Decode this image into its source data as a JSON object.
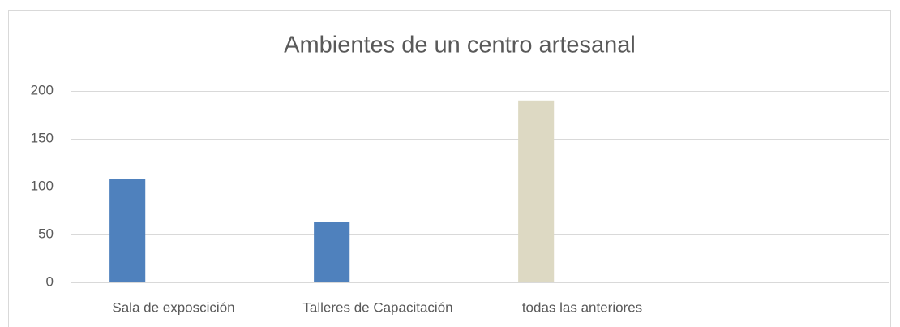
{
  "chart_data": {
    "type": "bar",
    "title": "Ambientes de un centro artesanal",
    "categories": [
      "Sala de exposcición",
      "Talleres de Capacitación",
      "todas las anteriores",
      null
    ],
    "values": [
      108,
      63,
      190,
      null
    ],
    "colors": [
      "#4f81bd",
      "#4f81bd",
      "#ddd9c3",
      "#4f81bd"
    ],
    "ylim": [
      0,
      200
    ],
    "yticks": [
      0,
      50,
      100,
      150,
      200
    ],
    "grid": true
  }
}
